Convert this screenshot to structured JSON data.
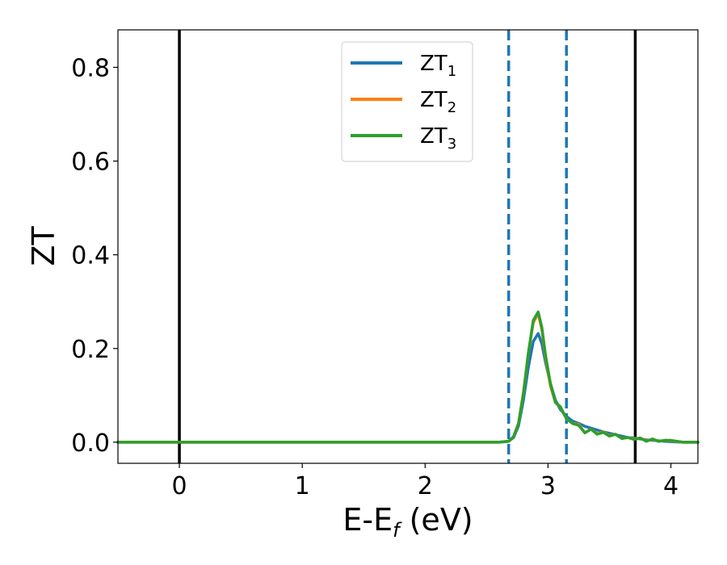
{
  "chart_data": {
    "type": "line",
    "xlabel": "E-E",
    "xlabel_sub": "f",
    "xlabel_unit": " (eV)",
    "ylabel": "ZT",
    "xlim": [
      -0.5,
      4.22
    ],
    "ylim": [
      -0.045,
      0.88
    ],
    "xticks": [
      0,
      1,
      2,
      3,
      4
    ],
    "xtick_labels": [
      "0",
      "1",
      "2",
      "3",
      "4"
    ],
    "yticks": [
      0.0,
      0.2,
      0.4,
      0.6,
      0.8
    ],
    "ytick_labels": [
      "0.0",
      "0.2",
      "0.4",
      "0.6",
      "0.8"
    ],
    "grid": false,
    "legend": {
      "position": "upper-center",
      "entries": [
        {
          "base": "ZT",
          "sub": "1",
          "series": 0
        },
        {
          "base": "ZT",
          "sub": "2",
          "series": 1
        },
        {
          "base": "ZT",
          "sub": "3",
          "series": 2
        }
      ]
    },
    "vlines": [
      {
        "x": 0.0,
        "style": "solid",
        "color": "#000000"
      },
      {
        "x": 3.71,
        "style": "solid",
        "color": "#000000"
      },
      {
        "x": 2.68,
        "style": "dashed",
        "color": "#1f77b4"
      },
      {
        "x": 3.15,
        "style": "dashed",
        "color": "#1f77b4"
      }
    ],
    "series": [
      {
        "color": "#1f77b4",
        "x": [
          -0.5,
          2.6,
          2.68,
          2.72,
          2.76,
          2.8,
          2.84,
          2.88,
          2.92,
          2.95,
          2.98,
          3.02,
          3.06,
          3.1,
          3.15,
          3.2,
          3.25,
          3.3,
          3.35,
          3.4,
          3.45,
          3.5,
          3.55,
          3.6,
          3.65,
          3.7,
          3.75,
          3.8,
          3.85,
          3.9,
          3.95,
          4.0,
          4.1,
          4.22
        ],
        "y": [
          0.0,
          0.0,
          0.002,
          0.01,
          0.035,
          0.09,
          0.16,
          0.215,
          0.232,
          0.21,
          0.17,
          0.125,
          0.09,
          0.07,
          0.055,
          0.045,
          0.04,
          0.034,
          0.03,
          0.026,
          0.022,
          0.019,
          0.016,
          0.013,
          0.01,
          0.009,
          0.007,
          0.005,
          0.004,
          0.003,
          0.002,
          0.001,
          0.0,
          0.0
        ]
      },
      {
        "color": "#ff7f0e",
        "x": [
          -0.5,
          2.6,
          2.68,
          2.72,
          2.76,
          2.8,
          2.84,
          2.88,
          2.92,
          2.95,
          2.98,
          3.02,
          3.06,
          3.1,
          3.15,
          3.2,
          3.25,
          3.3,
          3.35,
          3.4,
          3.45,
          3.5,
          3.55,
          3.6,
          3.65,
          3.7,
          3.75,
          3.8,
          3.85,
          3.9,
          3.95,
          4.0,
          4.1,
          4.22
        ],
        "y": [
          0.0,
          0.0,
          0.002,
          0.012,
          0.04,
          0.105,
          0.19,
          0.255,
          0.275,
          0.24,
          0.18,
          0.12,
          0.085,
          0.075,
          0.05,
          0.04,
          0.038,
          0.02,
          0.028,
          0.018,
          0.022,
          0.014,
          0.017,
          0.008,
          0.01,
          0.007,
          0.009,
          0.003,
          0.006,
          0.002,
          0.004,
          0.003,
          0.0,
          0.0
        ]
      },
      {
        "color": "#2ca02c",
        "x": [
          -0.5,
          2.6,
          2.68,
          2.72,
          2.76,
          2.8,
          2.84,
          2.88,
          2.92,
          2.95,
          2.98,
          3.02,
          3.06,
          3.1,
          3.15,
          3.2,
          3.25,
          3.3,
          3.35,
          3.4,
          3.45,
          3.5,
          3.55,
          3.6,
          3.65,
          3.7,
          3.75,
          3.8,
          3.85,
          3.9,
          3.95,
          4.0,
          4.1,
          4.22
        ],
        "y": [
          0.0,
          0.0,
          0.002,
          0.012,
          0.04,
          0.105,
          0.19,
          0.26,
          0.278,
          0.245,
          0.185,
          0.125,
          0.085,
          0.076,
          0.05,
          0.04,
          0.036,
          0.02,
          0.028,
          0.017,
          0.021,
          0.013,
          0.017,
          0.008,
          0.01,
          0.006,
          0.009,
          0.002,
          0.007,
          0.002,
          0.004,
          0.004,
          0.0,
          0.0
        ]
      }
    ]
  }
}
